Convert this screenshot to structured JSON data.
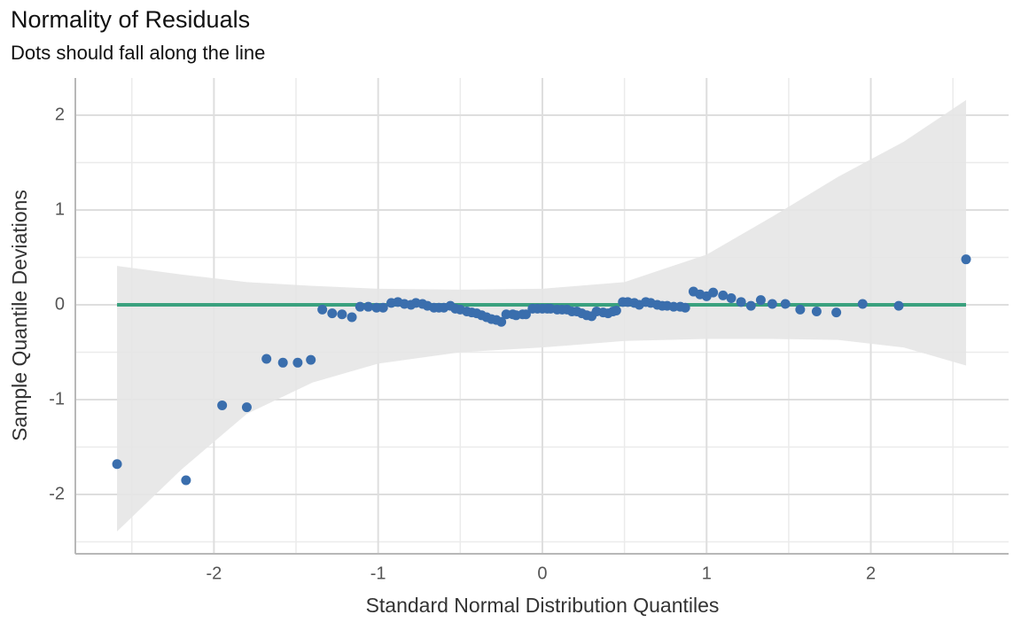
{
  "chart_data": {
    "type": "scatter",
    "title": "Normality of Residuals",
    "subtitle": "Dots should fall along the line",
    "x_label": "Standard Normal Distribution Quantiles",
    "y_label": "Sample Quantile Deviations",
    "xlim": [
      -2.844,
      2.839
    ],
    "ylim": [
      -2.626,
      2.393
    ],
    "xticks": [
      -2,
      -1,
      0,
      1,
      2
    ],
    "yticks": [
      -2,
      -1,
      0,
      1,
      2
    ],
    "x_minor_grid": [
      -2.5,
      -1.5,
      -0.5,
      0.5,
      1.5,
      2.5
    ],
    "y_minor_grid": [
      -2.5,
      -1.5,
      -0.5,
      0.5,
      1.5
    ],
    "grid": true,
    "color": "#3a6ead",
    "x": [
      -2.59,
      -2.17,
      -1.95,
      -1.8,
      -1.68,
      -1.58,
      -1.49,
      -1.41,
      -1.34,
      -1.28,
      -1.22,
      -1.16,
      -1.11,
      -1.06,
      -1.01,
      -0.97,
      -0.92,
      -0.88,
      -0.84,
      -0.8,
      -0.77,
      -0.73,
      -0.7,
      -0.66,
      -0.63,
      -0.6,
      -0.56,
      -0.53,
      -0.5,
      -0.46,
      -0.43,
      -0.4,
      -0.37,
      -0.34,
      -0.31,
      -0.28,
      -0.25,
      -0.22,
      -0.18,
      -0.16,
      -0.12,
      -0.1,
      -0.06,
      -0.03,
      0.0,
      0.03,
      0.05,
      0.09,
      0.12,
      0.15,
      0.18,
      0.21,
      0.24,
      0.27,
      0.3,
      0.33,
      0.37,
      0.4,
      0.43,
      0.45,
      0.49,
      0.52,
      0.56,
      0.59,
      0.63,
      0.66,
      0.7,
      0.73,
      0.76,
      0.8,
      0.84,
      0.87,
      0.92,
      0.96,
      1.0,
      1.04,
      1.1,
      1.15,
      1.21,
      1.27,
      1.33,
      1.4,
      1.48,
      1.57,
      1.67,
      1.79,
      1.95,
      2.17,
      2.58
    ],
    "values": [
      -1.68,
      -1.85,
      -1.06,
      -1.08,
      -0.57,
      -0.61,
      -0.61,
      -0.58,
      -0.05,
      -0.09,
      -0.1,
      -0.13,
      -0.02,
      -0.02,
      -0.03,
      -0.03,
      0.02,
      0.03,
      0.01,
      0.0,
      0.02,
      0.01,
      -0.01,
      -0.03,
      -0.03,
      -0.03,
      -0.01,
      -0.04,
      -0.05,
      -0.07,
      -0.08,
      -0.09,
      -0.11,
      -0.13,
      -0.15,
      -0.16,
      -0.18,
      -0.1,
      -0.1,
      -0.11,
      -0.1,
      -0.1,
      -0.04,
      -0.04,
      -0.04,
      -0.04,
      -0.04,
      -0.05,
      -0.05,
      -0.05,
      -0.07,
      -0.07,
      -0.09,
      -0.11,
      -0.12,
      -0.07,
      -0.08,
      -0.09,
      -0.07,
      -0.06,
      0.03,
      0.03,
      0.02,
      0.0,
      0.03,
      0.02,
      0.0,
      -0.01,
      -0.01,
      -0.02,
      -0.02,
      -0.03,
      0.14,
      0.11,
      0.09,
      0.13,
      0.1,
      0.07,
      0.03,
      -0.01,
      0.05,
      0.01,
      0.01,
      -0.05,
      -0.07,
      -0.08,
      0.01,
      -0.01,
      0.48
    ],
    "reference_line": {
      "x": [
        -2.59,
        2.58
      ],
      "y": [
        0,
        0
      ],
      "color": "#3aa17e"
    },
    "band": {
      "color": "#e5e5e5",
      "x": [
        -2.59,
        -2.2,
        -1.8,
        -1.4,
        -1.0,
        -0.5,
        0,
        0.5,
        1.0,
        1.4,
        1.8,
        2.2,
        2.58
      ],
      "upper": [
        0.41,
        0.32,
        0.24,
        0.2,
        0.17,
        0.16,
        0.17,
        0.24,
        0.53,
        0.93,
        1.35,
        1.72,
        2.16
      ],
      "lower": [
        -2.39,
        -1.74,
        -1.15,
        -0.82,
        -0.62,
        -0.5,
        -0.45,
        -0.38,
        -0.36,
        -0.36,
        -0.37,
        -0.45,
        -0.64
      ]
    }
  }
}
